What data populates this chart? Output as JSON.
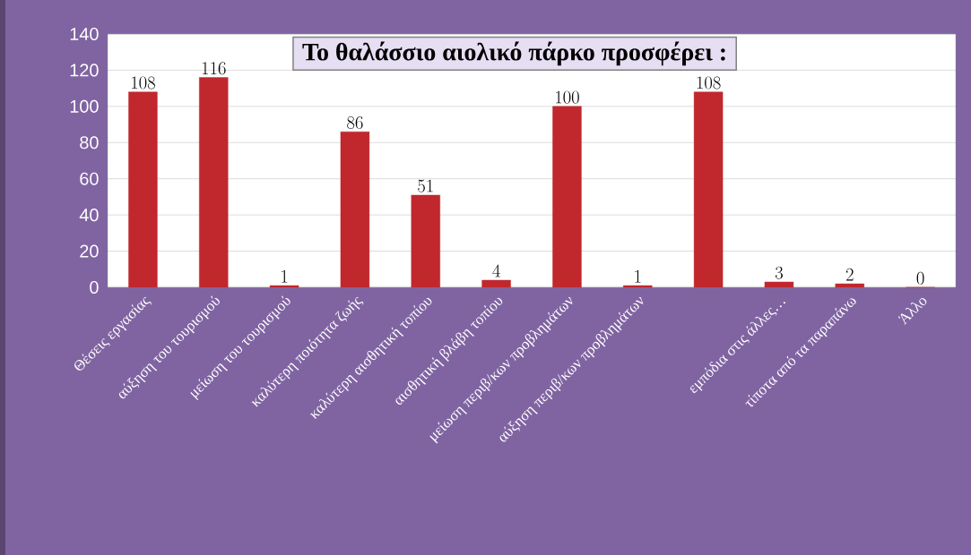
{
  "chart_data": {
    "type": "bar",
    "title": "Το θαλάσσιο αιολικό πάρκο προσφέρει :",
    "categories": [
      "Θέσεις εργασίας",
      "αύξηση του τουρισμού",
      "μείωση του τουρισμού",
      "καλύτερη ποιότητα ζωής",
      "καλύτερη αισθητική τοπίου",
      "αισθητική βλάβη τοπίου",
      "μείωση περιβ/κων προβλημάτων",
      "αύξηση περιβ/κων προβλημάτων",
      null,
      "εμπόδια στις άλλες…",
      "τίποτα από τα παραπάνω",
      "Άλλο"
    ],
    "values": [
      108,
      116,
      1,
      86,
      51,
      4,
      100,
      1,
      108,
      3,
      2,
      0
    ],
    "color": "#c0282d",
    "ylim": [
      0,
      140
    ],
    "yticks": [
      0,
      20,
      40,
      60,
      80,
      100,
      120,
      140
    ],
    "grid": "y",
    "data_labels": true
  }
}
